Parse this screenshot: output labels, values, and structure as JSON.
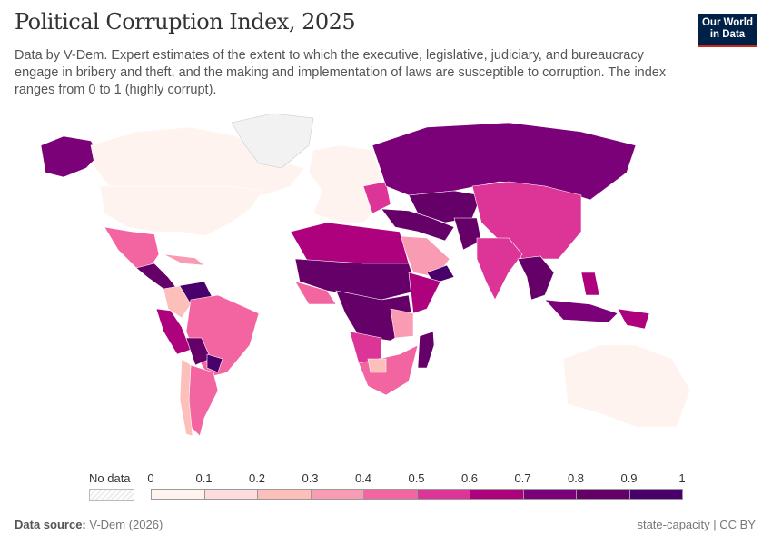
{
  "header": {
    "title": "Political Corruption Index, 2025",
    "subtitle": "Data by V-Dem. Expert estimates of the extent to which the executive, legislative, judiciary, and bureaucracy engage in bribery and theft, and the making and implementation of laws are susceptible to corruption. The index ranges from 0 to 1 (highly corrupt).",
    "logo_line1": "Our World",
    "logo_line2": "in Data"
  },
  "legend": {
    "no_data_label": "No data",
    "ticks": [
      "0",
      "0.1",
      "0.2",
      "0.3",
      "0.4",
      "0.5",
      "0.6",
      "0.7",
      "0.8",
      "0.9",
      "1"
    ],
    "bin_colors": [
      "#fff3f0",
      "#fddcdc",
      "#fcbfba",
      "#f99bb3",
      "#f365a0",
      "#dd3497",
      "#ae017e",
      "#7a0177",
      "#650068",
      "#49006a"
    ],
    "no_data_color": "#eeeeee"
  },
  "chart_data": {
    "type": "choropleth-map",
    "title": "Political Corruption Index, 2025",
    "scale": {
      "min": 0,
      "max": 1,
      "bins": [
        0,
        0.1,
        0.2,
        0.3,
        0.4,
        0.5,
        0.6,
        0.7,
        0.8,
        0.9,
        1
      ]
    }
  },
  "footer": {
    "source_label": "Data source:",
    "source_value": "V-Dem (2026)",
    "right": "state-capacity | CC BY"
  }
}
